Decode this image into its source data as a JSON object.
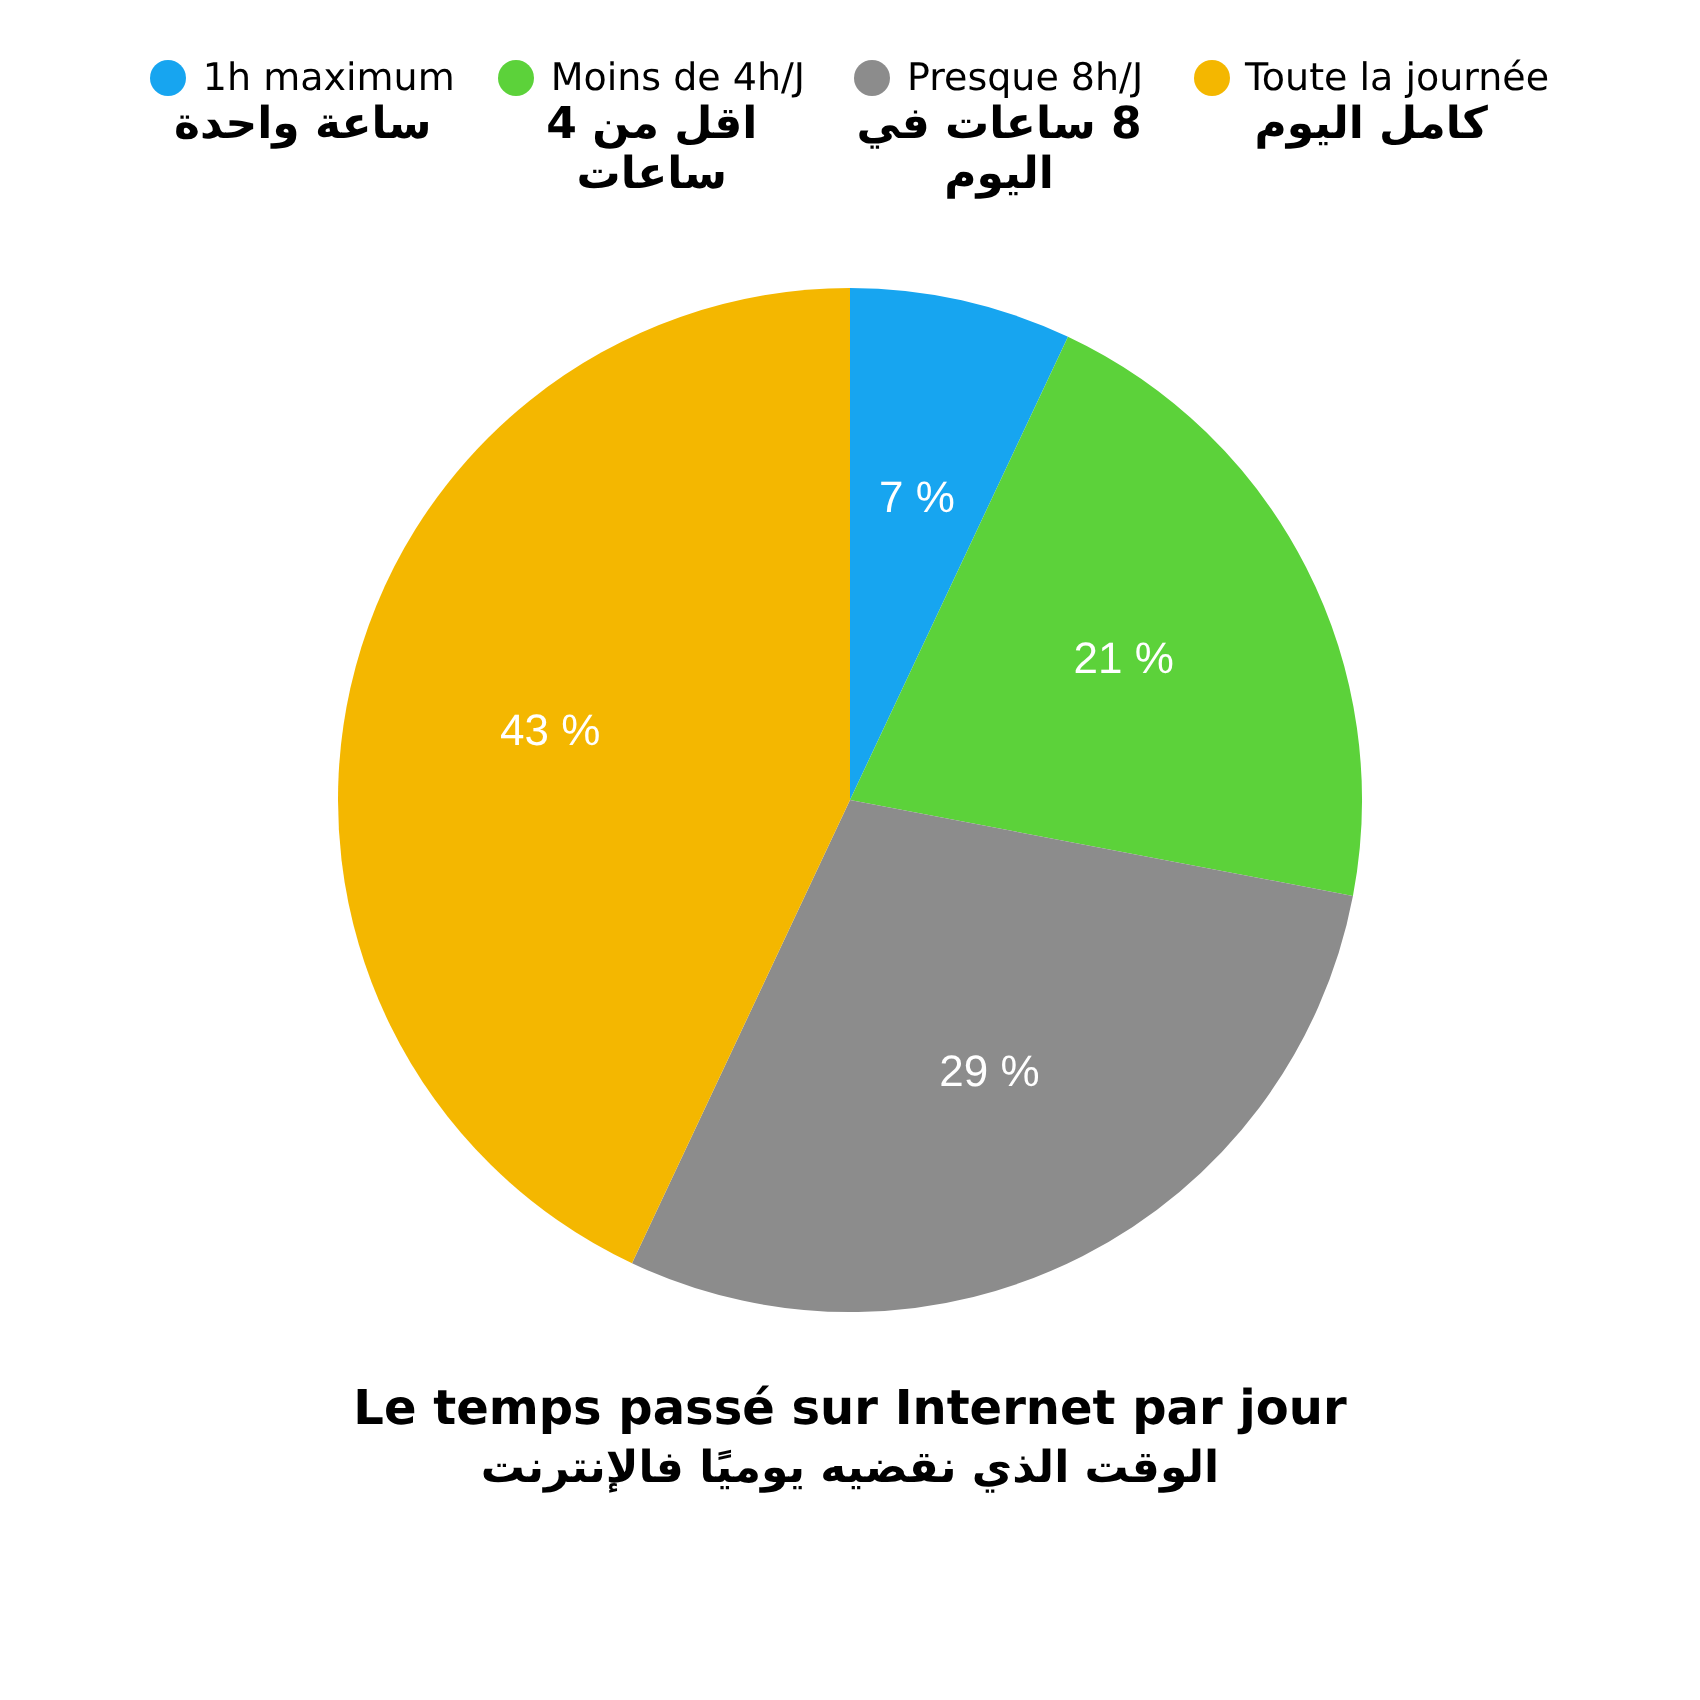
{
  "chart_data": {
    "type": "pie",
    "title": "Le temps passé sur Internet par jour",
    "subtitle": "الوقت الذي نقضيه يوميًا فالإنترنت",
    "categories": [
      "1h maximum\nساعة واحدة",
      "Moins de 4h/J\nاقل من 4 ساعات",
      "Presque 8h/J\n8 ساعات في اليوم",
      "Toute la journée\nكامل اليوم"
    ],
    "values": [
      7,
      21,
      29,
      43
    ],
    "colors": [
      "#17a5f0",
      "#5cd23a",
      "#8c8c8c",
      "#f4b700"
    ],
    "value_labels": [
      "7 %",
      "21 %",
      "29 %",
      "43 %"
    ],
    "legend": "top"
  }
}
